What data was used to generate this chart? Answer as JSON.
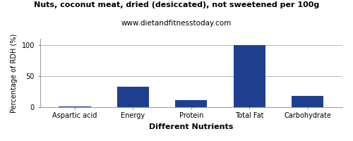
{
  "title": "Nuts, coconut meat, dried (desiccated), not sweetened per 100g",
  "subtitle": "www.dietandfitnesstoday.com",
  "xlabel": "Different Nutrients",
  "ylabel": "Percentage of RDH (%)",
  "categories": [
    "Aspartic acid",
    "Energy",
    "Protein",
    "Total Fat",
    "Carbohydrate"
  ],
  "values": [
    0.5,
    33,
    11,
    100,
    18
  ],
  "bar_color": "#1F3F8F",
  "ylim": [
    0,
    110
  ],
  "yticks": [
    0,
    50,
    100
  ],
  "background_color": "#FFFFFF",
  "grid_color": "#AAAAAA",
  "title_fontsize": 8,
  "subtitle_fontsize": 7.5,
  "xlabel_fontsize": 8,
  "ylabel_fontsize": 7,
  "tick_fontsize": 7,
  "bar_width": 0.55
}
